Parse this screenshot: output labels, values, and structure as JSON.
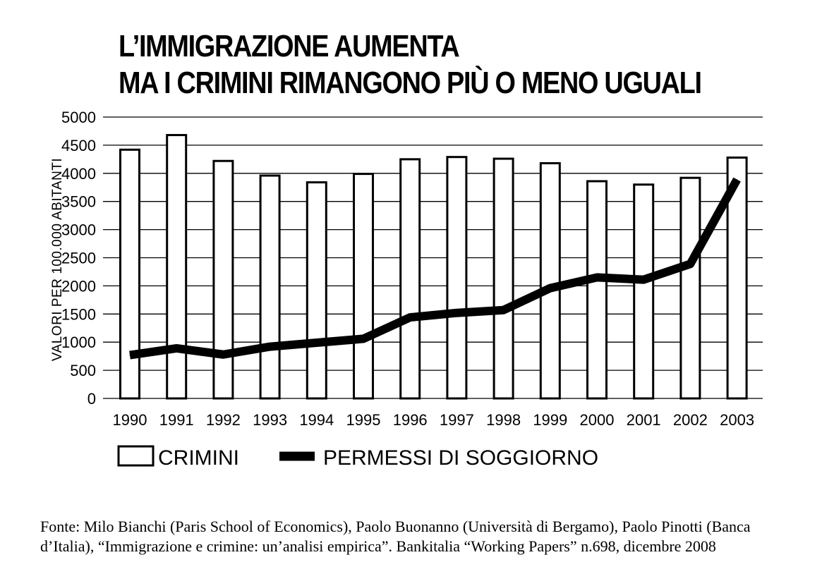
{
  "title": {
    "line1": "L’IMMIGRAZIONE AUMENTA",
    "line2": "MA I CRIMINI RIMANGONO PIÙ O MENO UGUALI"
  },
  "source": "Fonte: Milo Bianchi (Paris School of Economics), Paolo Buonanno (Università di Bergamo), Paolo Pinotti (Banca d’Italia), “Immigrazione e crimine: un’analisi empirica”. Bankitalia “Working Papers” n.698, dicembre 2008",
  "chart_data": {
    "type": "bar+line",
    "categories": [
      "1990",
      "1991",
      "1992",
      "1993",
      "1994",
      "1995",
      "1996",
      "1997",
      "1998",
      "1999",
      "2000",
      "2001",
      "2002",
      "2003"
    ],
    "series": [
      {
        "name": "CRIMINI",
        "type": "bar",
        "values": [
          4420,
          4680,
          4220,
          3960,
          3840,
          3990,
          4250,
          4290,
          4260,
          4180,
          3860,
          3800,
          3920,
          4280
        ]
      },
      {
        "name": "PERMESSI DI SOGGIORNO",
        "type": "line",
        "values": [
          770,
          890,
          780,
          920,
          990,
          1060,
          1440,
          1520,
          1570,
          1960,
          2150,
          2110,
          2390,
          3890
        ]
      }
    ],
    "ylabel": "VALORI PER 100.000 ABITANTI",
    "ylim": [
      0,
      5000
    ],
    "yticks": [
      0,
      500,
      1000,
      1500,
      2000,
      2500,
      3000,
      3500,
      4000,
      4500,
      5000
    ],
    "grid": "horizontal",
    "legend_position": "bottom-left"
  }
}
